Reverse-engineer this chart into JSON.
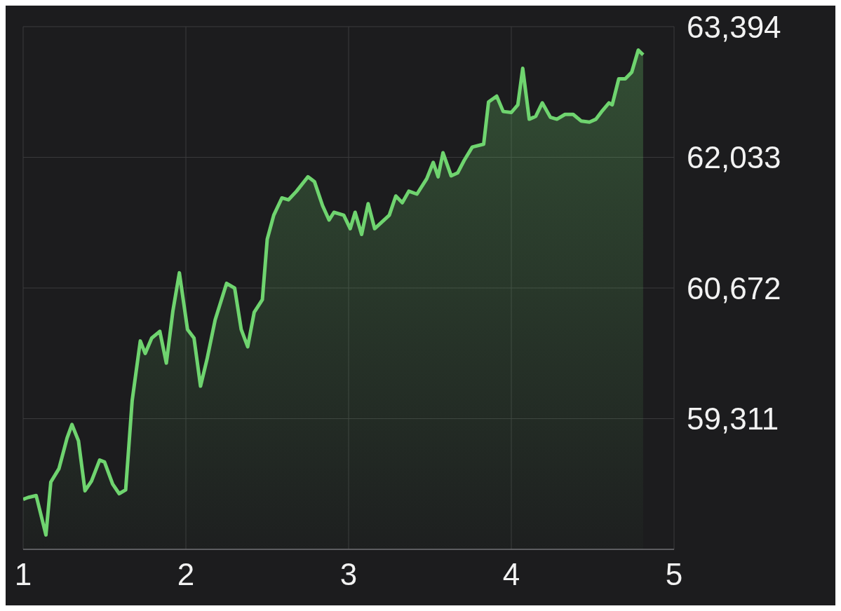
{
  "chart_data": {
    "type": "area",
    "x": [
      1.0,
      1.03,
      1.08,
      1.14,
      1.17,
      1.22,
      1.27,
      1.3,
      1.34,
      1.38,
      1.42,
      1.47,
      1.5,
      1.55,
      1.59,
      1.63,
      1.67,
      1.72,
      1.75,
      1.79,
      1.84,
      1.88,
      1.92,
      1.96,
      2.01,
      2.05,
      2.09,
      2.13,
      2.18,
      2.25,
      2.3,
      2.34,
      2.38,
      2.42,
      2.47,
      2.5,
      2.54,
      2.59,
      2.63,
      2.68,
      2.75,
      2.79,
      2.84,
      2.88,
      2.91,
      2.97,
      3.01,
      3.04,
      3.08,
      3.12,
      3.16,
      3.25,
      3.29,
      3.33,
      3.37,
      3.42,
      3.48,
      3.52,
      3.55,
      3.58,
      3.63,
      3.67,
      3.71,
      3.76,
      3.83,
      3.86,
      3.91,
      3.95,
      4.0,
      4.04,
      4.07,
      4.11,
      4.15,
      4.19,
      4.24,
      4.28,
      4.33,
      4.38,
      4.43,
      4.48,
      4.52,
      4.56,
      4.6,
      4.62,
      4.66,
      4.7,
      4.74,
      4.78,
      4.81
    ],
    "series": [
      {
        "color": "#6fd46f",
        "values": [
          58470,
          58490,
          58510,
          58100,
          58650,
          58790,
          59110,
          59250,
          59080,
          58560,
          58660,
          58880,
          58860,
          58630,
          58530,
          58570,
          59500,
          60120,
          59990,
          60150,
          60220,
          59890,
          60430,
          60830,
          60240,
          60150,
          59650,
          59930,
          60340,
          60720,
          60670,
          60240,
          60060,
          60420,
          60550,
          61180,
          61430,
          61610,
          61590,
          61680,
          61830,
          61780,
          61530,
          61380,
          61460,
          61430,
          61290,
          61460,
          61230,
          61550,
          61290,
          61430,
          61630,
          61560,
          61680,
          61650,
          61810,
          61980,
          61830,
          62080,
          61840,
          61870,
          62000,
          62140,
          62170,
          62610,
          62670,
          62510,
          62500,
          62580,
          62960,
          62430,
          62460,
          62600,
          62450,
          62430,
          62480,
          62480,
          62410,
          62400,
          62430,
          62520,
          62600,
          62580,
          62850,
          62850,
          62920,
          63150,
          63100
        ]
      }
    ],
    "xlim": [
      1,
      5
    ],
    "xticks": [
      1,
      2,
      3,
      4,
      5
    ],
    "ylim": [
      57950,
      63394
    ],
    "yticks": [
      {
        "value": 59311,
        "label": "59,311"
      },
      {
        "value": 60672,
        "label": "60,672"
      },
      {
        "value": 62033,
        "label": "62,033"
      },
      {
        "value": 63394,
        "label": "63,394"
      }
    ],
    "grid": true
  }
}
